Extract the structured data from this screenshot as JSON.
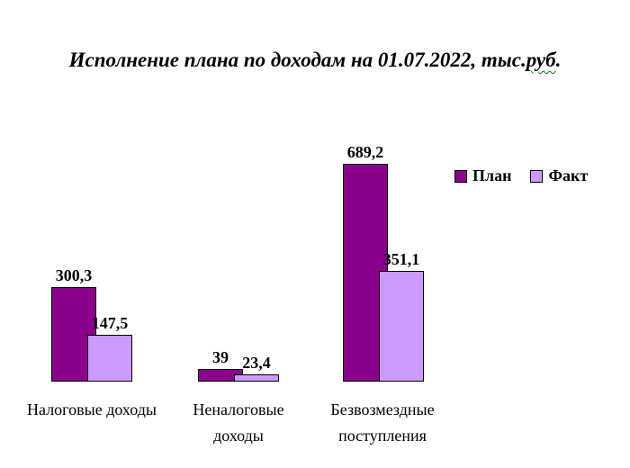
{
  "title": {
    "prefix": "Исполнение плана по доходам на 01.07.2022, тыс.",
    "spellcheck_word": "руб",
    "suffix": "."
  },
  "chart_data": {
    "type": "bar",
    "title": "Исполнение плана по доходам на 01.07.2022, тыс.руб.",
    "categories": [
      "Налоговые доходы",
      "Неналоговые доходы",
      "Безвозмездные поступления"
    ],
    "series": [
      {
        "name": "План",
        "color": "#8B008B",
        "values": [
          300.3,
          39,
          689.2
        ],
        "labels": [
          "300,3",
          "39",
          "689,2"
        ]
      },
      {
        "name": "Факт",
        "color": "#CC99FF",
        "values": [
          147.5,
          23.4,
          351.1
        ],
        "labels": [
          "147,5",
          "23,4",
          "351,1"
        ]
      }
    ],
    "ylim": [
      0,
      689.2
    ],
    "xlabel": "",
    "ylabel": "",
    "grid": false,
    "axis_lines": false,
    "data_labels": true,
    "legend_position": "right",
    "bar_style": "overlapping-pairs"
  }
}
